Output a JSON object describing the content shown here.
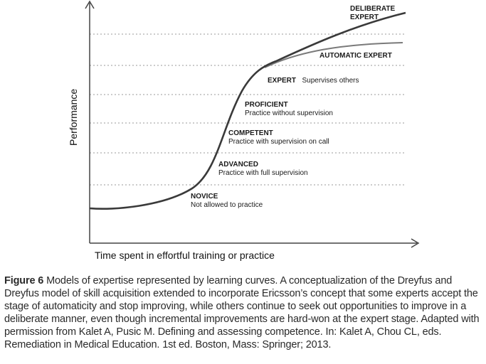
{
  "diagram": {
    "y_axis_label": "Performance",
    "x_axis_label": "Time spent in effortful training or practice",
    "stages": [
      {
        "id": "novice",
        "title": "NOVICE",
        "desc": "Not allowed to practice"
      },
      {
        "id": "advanced",
        "title": "ADVANCED",
        "desc": "Practice with full supervision"
      },
      {
        "id": "competent",
        "title": "COMPETENT",
        "desc": "Practice with supervision on call"
      },
      {
        "id": "proficient",
        "title": "PROFICIENT",
        "desc": "Practice without supervision"
      },
      {
        "id": "expert",
        "title": "EXPERT",
        "desc": "Supervises others"
      },
      {
        "id": "automatic-expert",
        "title": "AUTOMATIC EXPERT",
        "desc": ""
      },
      {
        "id": "deliberate-expert",
        "title": "DELIBERATE",
        "title_line2": "EXPERT",
        "desc": ""
      }
    ],
    "colors": {
      "deliberate_curve": "#3a3a3a",
      "automatic_curve": "#7a7a7a",
      "axis": "#444444",
      "gridline": "#9a9a9a"
    }
  },
  "caption": {
    "label": "Figure 6",
    "text": " Models of expertise represented by learning curves. A conceptualization of the Dreyfus and Dreyfus model of skill acquisition extended to incorporate Ericsson’s concept that some experts accept the stage of automaticity and stop improving, while others continue to seek out opportunities to improve in a deliberate manner, even though incremental improvements are hard-won at the expert stage. Adapted with permission from Kalet A, Pusic M. Defining and assessing competence. In: Kalet A, Chou CL, eds. Remediation in Medical Education. 1st ed. Boston, Mass: Springer; 2013."
  }
}
